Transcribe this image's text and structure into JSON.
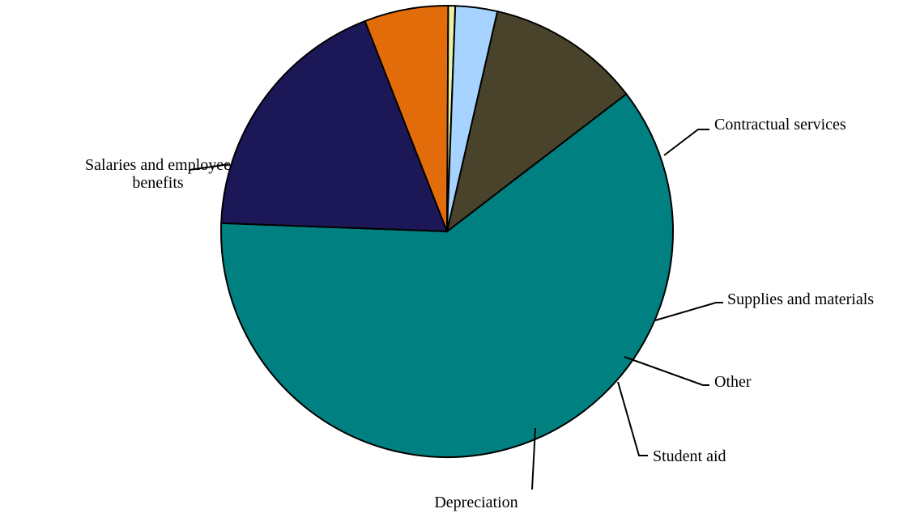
{
  "chart_data": {
    "type": "pie",
    "title": "",
    "slices": [
      {
        "label": "Salaries and employee benefits",
        "label_lines": [
          "Salaries and employee",
          "benefits"
        ],
        "value": 61.0,
        "color": "#008080"
      },
      {
        "label": "Contractual services",
        "label_lines": [
          "Contractual services"
        ],
        "value": 18.5,
        "color": "#1c1858"
      },
      {
        "label": "Supplies and materials",
        "label_lines": [
          "Supplies and materials"
        ],
        "value": 6.0,
        "color": "#e36c0a"
      },
      {
        "label": "Other",
        "label_lines": [
          "Other"
        ],
        "value": 0.5,
        "color": "#eaf1a8"
      },
      {
        "label": "Student aid",
        "label_lines": [
          "Student aid"
        ],
        "value": 3.0,
        "color": "#a6d3ff"
      },
      {
        "label": "Depreciation",
        "label_lines": [
          "Depreciation"
        ],
        "value": 11.0,
        "color": "#4a432c"
      }
    ],
    "legend": "none",
    "labels": "outside with leader lines"
  }
}
